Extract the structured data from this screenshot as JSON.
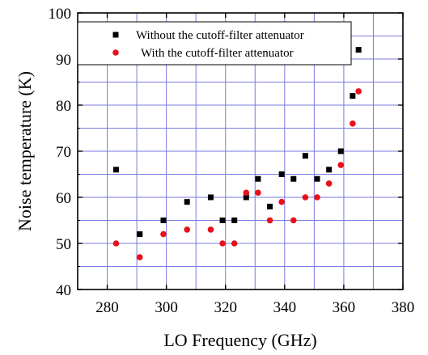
{
  "chart_data": {
    "type": "scatter",
    "title": "",
    "xlabel": "LO Frequency (GHz)",
    "ylabel": "Noise temperature (K)",
    "xlim": [
      270,
      380
    ],
    "ylim": [
      40,
      100
    ],
    "xticks": [
      "280",
      "300",
      "320",
      "340",
      "360",
      "380"
    ],
    "yticks": [
      "40",
      "50",
      "60",
      "70",
      "80",
      "90",
      "100"
    ],
    "grid": true,
    "legend_position": "top",
    "series": [
      {
        "name": "Without the cutoff-filter attenuator",
        "marker": "square",
        "color": "#000000",
        "x": [
          283,
          291,
          299,
          307,
          315,
          319,
          323,
          327,
          331,
          335,
          339,
          343,
          347,
          351,
          355,
          359,
          363,
          365
        ],
        "y": [
          66,
          52,
          55,
          59,
          60,
          55,
          55,
          60,
          64,
          58,
          65,
          64,
          69,
          64,
          66,
          70,
          82,
          92
        ]
      },
      {
        "name": "With the cutoff-filter attenuator",
        "marker": "circle",
        "color": "#e8101a",
        "x": [
          283,
          291,
          299,
          307,
          315,
          319,
          323,
          327,
          331,
          335,
          339,
          343,
          347,
          351,
          355,
          359,
          363,
          365
        ],
        "y": [
          50,
          47,
          52,
          53,
          53,
          50,
          50,
          61,
          61,
          55,
          59,
          55,
          60,
          60,
          63,
          67,
          76,
          83
        ]
      }
    ]
  }
}
